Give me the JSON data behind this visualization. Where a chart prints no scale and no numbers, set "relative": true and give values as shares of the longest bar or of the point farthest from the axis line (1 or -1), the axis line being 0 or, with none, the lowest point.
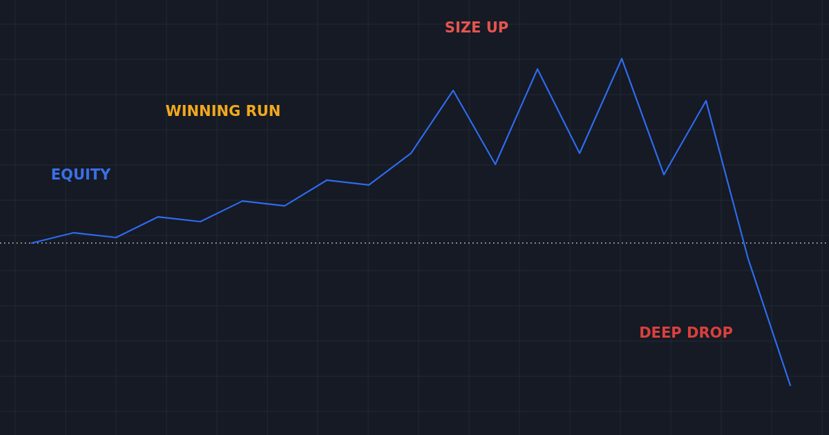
{
  "chart_data": {
    "type": "line",
    "relative": true,
    "grid": true,
    "marker": "none",
    "line_style": "solid",
    "categories": [
      null,
      null,
      null,
      null,
      null,
      null,
      null,
      null,
      null,
      null,
      null,
      null,
      null,
      null,
      null,
      null,
      null,
      null,
      null
    ],
    "series": [
      {
        "color": "#2f6bf0",
        "values": [
          0,
          0.056,
          0.03,
          0.142,
          0.116,
          0.228,
          0.202,
          0.341,
          0.315,
          0.487,
          0.828,
          0.427,
          0.944,
          0.487,
          1,
          0.371,
          0.772,
          -0.086,
          -0.772
        ]
      }
    ],
    "ref_lines": [
      {
        "axis": "y",
        "value": 0,
        "color": "#d8dbe2",
        "line_style": "dotted"
      }
    ],
    "annotations": [
      "EQUITY",
      "WINNING RUN",
      "SIZE UP",
      "DEEP DROP"
    ]
  }
}
